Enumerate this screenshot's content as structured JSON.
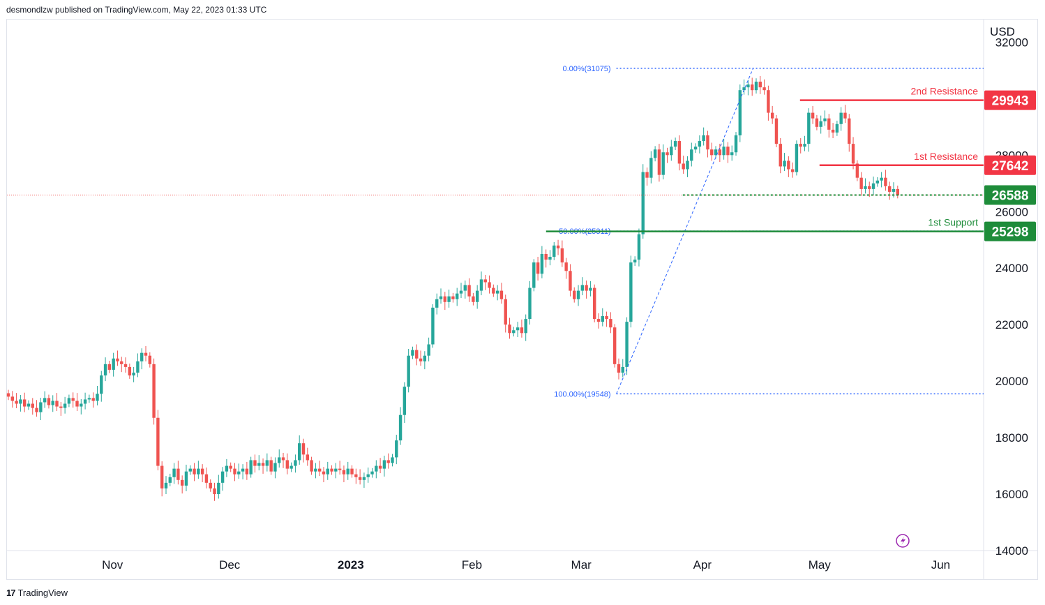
{
  "header": {
    "text": "desmondlzw published on TradingView.com, May 22, 2023 01:33 UTC"
  },
  "footer": {
    "brand": "TradingView"
  },
  "colors": {
    "up": "#26a69a",
    "upBody": "#089981",
    "upGreen": "#22ab94",
    "down": "#f23645",
    "resistance": "#f23645",
    "support": "#1e8c3a",
    "fib": "#2962ff",
    "grid": "#f0f3fa"
  },
  "chart_data": {
    "type": "candlestick",
    "currency_label": "USD",
    "y_range": [
      14000,
      32800
    ],
    "y_ticks": [
      14000,
      16000,
      18000,
      20000,
      22000,
      24000,
      26000,
      28000,
      32000
    ],
    "x_labels": [
      {
        "label": "Nov",
        "date": "2022-11-01"
      },
      {
        "label": "Dec",
        "date": "2022-12-01"
      },
      {
        "label": "2023",
        "date": "2023-01-01",
        "bold": true
      },
      {
        "label": "Feb",
        "date": "2023-02-01"
      },
      {
        "label": "Mar",
        "date": "2023-03-01"
      },
      {
        "label": "Apr",
        "date": "2023-04-01"
      },
      {
        "label": "May",
        "date": "2023-05-01"
      },
      {
        "label": "Jun",
        "date": "2023-06-01"
      }
    ],
    "x_range": [
      "2022-10-05",
      "2023-06-12"
    ],
    "levels": [
      {
        "label": "2nd Resistance",
        "value": 29943,
        "price_tag": "29943",
        "kind": "resistance",
        "start": "2023-04-26"
      },
      {
        "label": "1st Resistance",
        "value": 27642,
        "price_tag": "27642",
        "kind": "resistance",
        "start": "2023-05-01"
      },
      {
        "label": "",
        "value": 26588,
        "price_tag": "26588",
        "kind": "current",
        "start": "2023-03-27"
      },
      {
        "label": "1st Support",
        "value": 25298,
        "price_tag": "25298",
        "kind": "support",
        "start": "2023-02-20"
      }
    ],
    "fibonacci": [
      {
        "label": "0.00%(31075)",
        "value": 31075
      },
      {
        "label": "50.00%(25311)",
        "value": 25311
      },
      {
        "label": "100.00%(19548)",
        "value": 19548
      }
    ],
    "fib_anchor": {
      "from": "2023-03-10",
      "to": "2023-04-14",
      "end": "2023-06-12"
    },
    "last_price": 26588,
    "candles_closes": [
      19450,
      19300,
      19200,
      19350,
      19100,
      19200,
      19050,
      18900,
      19250,
      19400,
      19150,
      19300,
      19100,
      19050,
      19200,
      19400,
      19300,
      19100,
      19200,
      19350,
      19400,
      19300,
      19550,
      20200,
      20600,
      20400,
      20800,
      20700,
      20600,
      20500,
      20200,
      20300,
      20700,
      21000,
      20900,
      20600,
      18700,
      17000,
      16200,
      16400,
      16600,
      16900,
      16500,
      16300,
      16800,
      16900,
      16700,
      16900,
      16700,
      16400,
      16200,
      16000,
      16400,
      16800,
      17000,
      16900,
      16700,
      16800,
      16900,
      16700,
      17200,
      17000,
      17100,
      17000,
      17200,
      16800,
      17100,
      17300,
      17200,
      16900,
      17000,
      17200,
      17800,
      17400,
      17200,
      16800,
      16900,
      16800,
      16700,
      16900,
      16800,
      16900,
      16850,
      16700,
      16900,
      16700,
      16600,
      16500,
      16600,
      16700,
      16800,
      17000,
      16900,
      17200,
      17100,
      17300,
      17900,
      18800,
      19800,
      20900,
      21100,
      20800,
      20700,
      20900,
      21300,
      22600,
      22900,
      23000,
      22800,
      23000,
      22900,
      23100,
      23200,
      23400,
      23000,
      22800,
      23200,
      23600,
      23500,
      23300,
      23100,
      23200,
      22900,
      22000,
      21700,
      21800,
      21900,
      21700,
      22200,
      23300,
      24200,
      23800,
      24500,
      24300,
      24400,
      24800,
      24700,
      24200,
      23900,
      23200,
      22900,
      23200,
      23400,
      23200,
      23300,
      22200,
      22100,
      22300,
      22200,
      21900,
      20600,
      20300,
      20500,
      22100,
      24200,
      24300,
      25200,
      27400,
      27200,
      27900,
      28200,
      27300,
      28100,
      28000,
      28300,
      28500,
      27700,
      27500,
      27800,
      28200,
      28300,
      28500,
      28700,
      28200,
      28000,
      28200,
      28000,
      28300,
      28000,
      28100,
      28700,
      30300,
      30400,
      30500,
      30300,
      30600,
      30400,
      30300,
      29500,
      29300,
      28400,
      27600,
      27800,
      27500,
      27400,
      28400,
      28300,
      28400,
      29500,
      29300,
      29000,
      29200,
      29300,
      28900,
      28800,
      29100,
      29500,
      29300,
      28400,
      27700,
      27200,
      26800,
      26900,
      26800,
      27000,
      27100,
      27200,
      26900,
      26700,
      26800,
      26588
    ]
  }
}
